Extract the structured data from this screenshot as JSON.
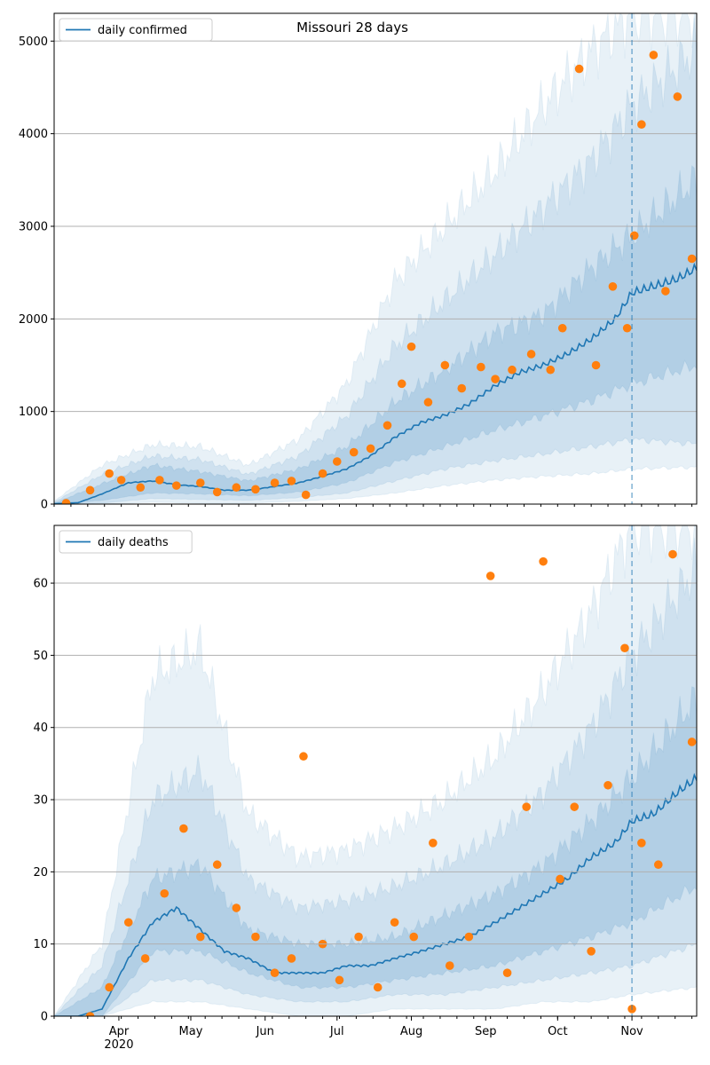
{
  "colors": {
    "line": "#1f77b4",
    "observed": "#ff7f0e",
    "band": "#1f77b4",
    "grid": "#b0b0b0",
    "forecast_marker": "#1f77b4"
  },
  "chart_data": [
    {
      "type": "line",
      "title": "Missouri 28 days",
      "legend": "top-left",
      "grid": "horizontal",
      "xlabel": "",
      "ylabel": "",
      "x_range": [
        "2020-03-05",
        "2020-11-28"
      ],
      "ylim": [
        0,
        5300
      ],
      "y_ticks": [
        0,
        1000,
        2000,
        3000,
        4000,
        5000
      ],
      "x_tick_labels": [],
      "forecast_start": "2020-11-01",
      "series": [
        {
          "name": "daily confirmed",
          "kind": "fitted line",
          "x": [
            "2020-03-05",
            "2020-03-15",
            "2020-03-25",
            "2020-04-05",
            "2020-04-15",
            "2020-04-25",
            "2020-05-05",
            "2020-05-15",
            "2020-05-25",
            "2020-06-05",
            "2020-06-15",
            "2020-06-25",
            "2020-07-05",
            "2020-07-15",
            "2020-07-25",
            "2020-08-05",
            "2020-08-15",
            "2020-08-25",
            "2020-09-05",
            "2020-09-15",
            "2020-09-25",
            "2020-10-05",
            "2020-10-15",
            "2020-10-25",
            "2020-11-01",
            "2020-11-10",
            "2020-11-20",
            "2020-11-28"
          ],
          "y": [
            5,
            15,
            110,
            230,
            250,
            210,
            190,
            150,
            150,
            190,
            230,
            300,
            380,
            520,
            720,
            880,
            960,
            1080,
            1280,
            1420,
            1500,
            1620,
            1780,
            2000,
            2280,
            2350,
            2430,
            2550
          ]
        },
        {
          "name": "",
          "kind": "observed points",
          "x": [
            "2020-03-10",
            "2020-03-20",
            "2020-03-28",
            "2020-04-02",
            "2020-04-10",
            "2020-04-18",
            "2020-04-25",
            "2020-05-05",
            "2020-05-12",
            "2020-05-20",
            "2020-05-28",
            "2020-06-05",
            "2020-06-12",
            "2020-06-18",
            "2020-06-25",
            "2020-07-01",
            "2020-07-08",
            "2020-07-15",
            "2020-07-22",
            "2020-07-28",
            "2020-08-01",
            "2020-08-08",
            "2020-08-15",
            "2020-08-22",
            "2020-08-30",
            "2020-09-05",
            "2020-09-12",
            "2020-09-20",
            "2020-09-28",
            "2020-10-03",
            "2020-10-10",
            "2020-10-17",
            "2020-10-24",
            "2020-10-30",
            "2020-11-02",
            "2020-11-05",
            "2020-11-10",
            "2020-11-15",
            "2020-11-20",
            "2020-11-26"
          ],
          "y": [
            10,
            150,
            330,
            260,
            180,
            260,
            200,
            230,
            130,
            180,
            160,
            230,
            250,
            100,
            330,
            460,
            560,
            600,
            850,
            1300,
            1700,
            1100,
            1500,
            1250,
            1480,
            1350,
            1450,
            1620,
            1450,
            1900,
            4700,
            1500,
            2350,
            1900,
            2900,
            4100,
            4850,
            2300,
            4400,
            2650
          ]
        }
      ],
      "bands": [
        {
          "x": [
            "2020-03-05",
            "2020-03-25",
            "2020-04-15",
            "2020-05-05",
            "2020-05-25",
            "2020-06-15",
            "2020-07-05",
            "2020-07-25",
            "2020-08-15",
            "2020-09-05",
            "2020-09-25",
            "2020-10-15",
            "2020-11-01",
            "2020-11-28"
          ],
          "lo": [
            0,
            40,
            120,
            110,
            90,
            130,
            230,
            450,
            620,
            800,
            950,
            1120,
            1300,
            1500
          ],
          "hi": [
            10,
            220,
            420,
            350,
            250,
            380,
            620,
            1100,
            1450,
            1850,
            2050,
            2550,
            2900,
            3500
          ]
        },
        {
          "x": [
            "2020-03-05",
            "2020-03-25",
            "2020-04-15",
            "2020-05-05",
            "2020-05-25",
            "2020-06-15",
            "2020-07-05",
            "2020-07-25",
            "2020-08-15",
            "2020-09-05",
            "2020-09-25",
            "2020-10-15",
            "2020-11-01",
            "2020-11-28"
          ],
          "lo": [
            0,
            10,
            60,
            50,
            40,
            70,
            120,
            250,
            380,
            470,
            540,
            620,
            700,
            650
          ],
          "hi": [
            20,
            320,
            520,
            480,
            320,
            520,
            950,
            1700,
            2200,
            2700,
            3200,
            3700,
            4300,
            4900
          ]
        },
        {
          "x": [
            "2020-03-05",
            "2020-03-25",
            "2020-04-15",
            "2020-05-05",
            "2020-05-25",
            "2020-06-15",
            "2020-07-05",
            "2020-07-25",
            "2020-08-15",
            "2020-09-05",
            "2020-09-25",
            "2020-10-15",
            "2020-11-01",
            "2020-11-28"
          ],
          "lo": [
            0,
            0,
            20,
            10,
            10,
            30,
            60,
            120,
            200,
            260,
            300,
            330,
            380,
            400
          ],
          "hi": [
            30,
            420,
            640,
            620,
            420,
            700,
            1300,
            2400,
            3000,
            3600,
            4300,
            4900,
            5300,
            5300
          ]
        }
      ]
    },
    {
      "type": "line",
      "title": "",
      "legend": "top-left",
      "grid": "horizontal",
      "xlabel": "",
      "ylabel": "",
      "x_range": [
        "2020-03-05",
        "2020-11-28"
      ],
      "ylim": [
        0,
        68
      ],
      "y_ticks": [
        0,
        10,
        20,
        30,
        40,
        50,
        60
      ],
      "x_tick_labels": [
        "Apr\n2020",
        "May",
        "Jun",
        "Jul",
        "Aug",
        "Sep",
        "Oct",
        "Nov"
      ],
      "x_tick_dates": [
        "2020-04-01",
        "2020-05-01",
        "2020-06-01",
        "2020-07-01",
        "2020-08-01",
        "2020-09-01",
        "2020-10-01",
        "2020-11-01"
      ],
      "forecast_start": "2020-11-01",
      "series": [
        {
          "name": "daily deaths",
          "kind": "fitted line",
          "x": [
            "2020-03-05",
            "2020-03-15",
            "2020-03-25",
            "2020-04-05",
            "2020-04-15",
            "2020-04-25",
            "2020-05-05",
            "2020-05-15",
            "2020-05-25",
            "2020-06-05",
            "2020-06-15",
            "2020-06-25",
            "2020-07-05",
            "2020-07-15",
            "2020-07-25",
            "2020-08-05",
            "2020-08-15",
            "2020-08-25",
            "2020-09-05",
            "2020-09-15",
            "2020-09-25",
            "2020-10-05",
            "2020-10-15",
            "2020-10-25",
            "2020-11-01",
            "2020-11-10",
            "2020-11-20",
            "2020-11-28"
          ],
          "y": [
            0,
            0,
            1,
            8,
            13,
            15,
            12,
            9,
            8,
            6,
            6,
            6,
            7,
            7,
            8,
            9,
            10,
            11,
            13,
            15,
            17,
            19,
            22,
            24,
            27,
            28,
            31,
            33
          ]
        },
        {
          "name": "",
          "kind": "observed points",
          "x": [
            "2020-03-20",
            "2020-03-28",
            "2020-04-05",
            "2020-04-12",
            "2020-04-20",
            "2020-04-28",
            "2020-05-05",
            "2020-05-12",
            "2020-05-20",
            "2020-05-28",
            "2020-06-05",
            "2020-06-12",
            "2020-06-17",
            "2020-06-25",
            "2020-07-02",
            "2020-07-10",
            "2020-07-18",
            "2020-07-25",
            "2020-08-02",
            "2020-08-10",
            "2020-08-17",
            "2020-08-25",
            "2020-09-03",
            "2020-09-10",
            "2020-09-18",
            "2020-09-25",
            "2020-10-02",
            "2020-10-08",
            "2020-10-15",
            "2020-10-22",
            "2020-10-29",
            "2020-11-01",
            "2020-11-05",
            "2020-11-12",
            "2020-11-18",
            "2020-11-26"
          ],
          "y": [
            0,
            4,
            13,
            8,
            17,
            26,
            11,
            21,
            15,
            11,
            6,
            8,
            36,
            10,
            5,
            11,
            4,
            13,
            11,
            24,
            7,
            11,
            61,
            6,
            29,
            63,
            19,
            29,
            9,
            32,
            51,
            1,
            24,
            21,
            64,
            38
          ]
        }
      ],
      "bands": [
        {
          "x": [
            "2020-03-05",
            "2020-03-25",
            "2020-04-15",
            "2020-05-05",
            "2020-05-25",
            "2020-06-15",
            "2020-07-05",
            "2020-07-25",
            "2020-08-15",
            "2020-09-05",
            "2020-09-25",
            "2020-10-15",
            "2020-11-01",
            "2020-11-28"
          ],
          "lo": [
            0,
            0,
            9,
            9,
            6,
            4,
            4,
            5,
            6,
            7,
            9,
            11,
            13,
            18
          ],
          "hi": [
            0,
            4,
            19,
            21,
            12,
            10,
            10,
            11,
            14,
            17,
            21,
            27,
            33,
            44
          ]
        },
        {
          "x": [
            "2020-03-05",
            "2020-03-25",
            "2020-04-15",
            "2020-05-05",
            "2020-05-25",
            "2020-06-15",
            "2020-07-05",
            "2020-07-25",
            "2020-08-15",
            "2020-09-05",
            "2020-09-25",
            "2020-10-15",
            "2020-11-01",
            "2020-11-28"
          ],
          "lo": [
            0,
            0,
            5,
            5,
            3,
            2,
            2,
            3,
            3,
            4,
            5,
            6,
            7,
            10
          ],
          "hi": [
            0,
            7,
            30,
            34,
            19,
            15,
            16,
            18,
            21,
            25,
            31,
            40,
            50,
            62
          ]
        },
        {
          "x": [
            "2020-03-05",
            "2020-03-25",
            "2020-04-15",
            "2020-05-05",
            "2020-05-25",
            "2020-06-15",
            "2020-07-05",
            "2020-07-25",
            "2020-08-15",
            "2020-09-05",
            "2020-09-25",
            "2020-10-15",
            "2020-11-01",
            "2020-11-28"
          ],
          "lo": [
            0,
            0,
            2,
            2,
            1,
            0,
            0,
            1,
            1,
            1,
            2,
            2,
            3,
            4
          ],
          "hi": [
            0,
            10,
            47,
            51,
            28,
            22,
            23,
            26,
            30,
            36,
            45,
            56,
            68,
            68
          ]
        }
      ]
    }
  ]
}
